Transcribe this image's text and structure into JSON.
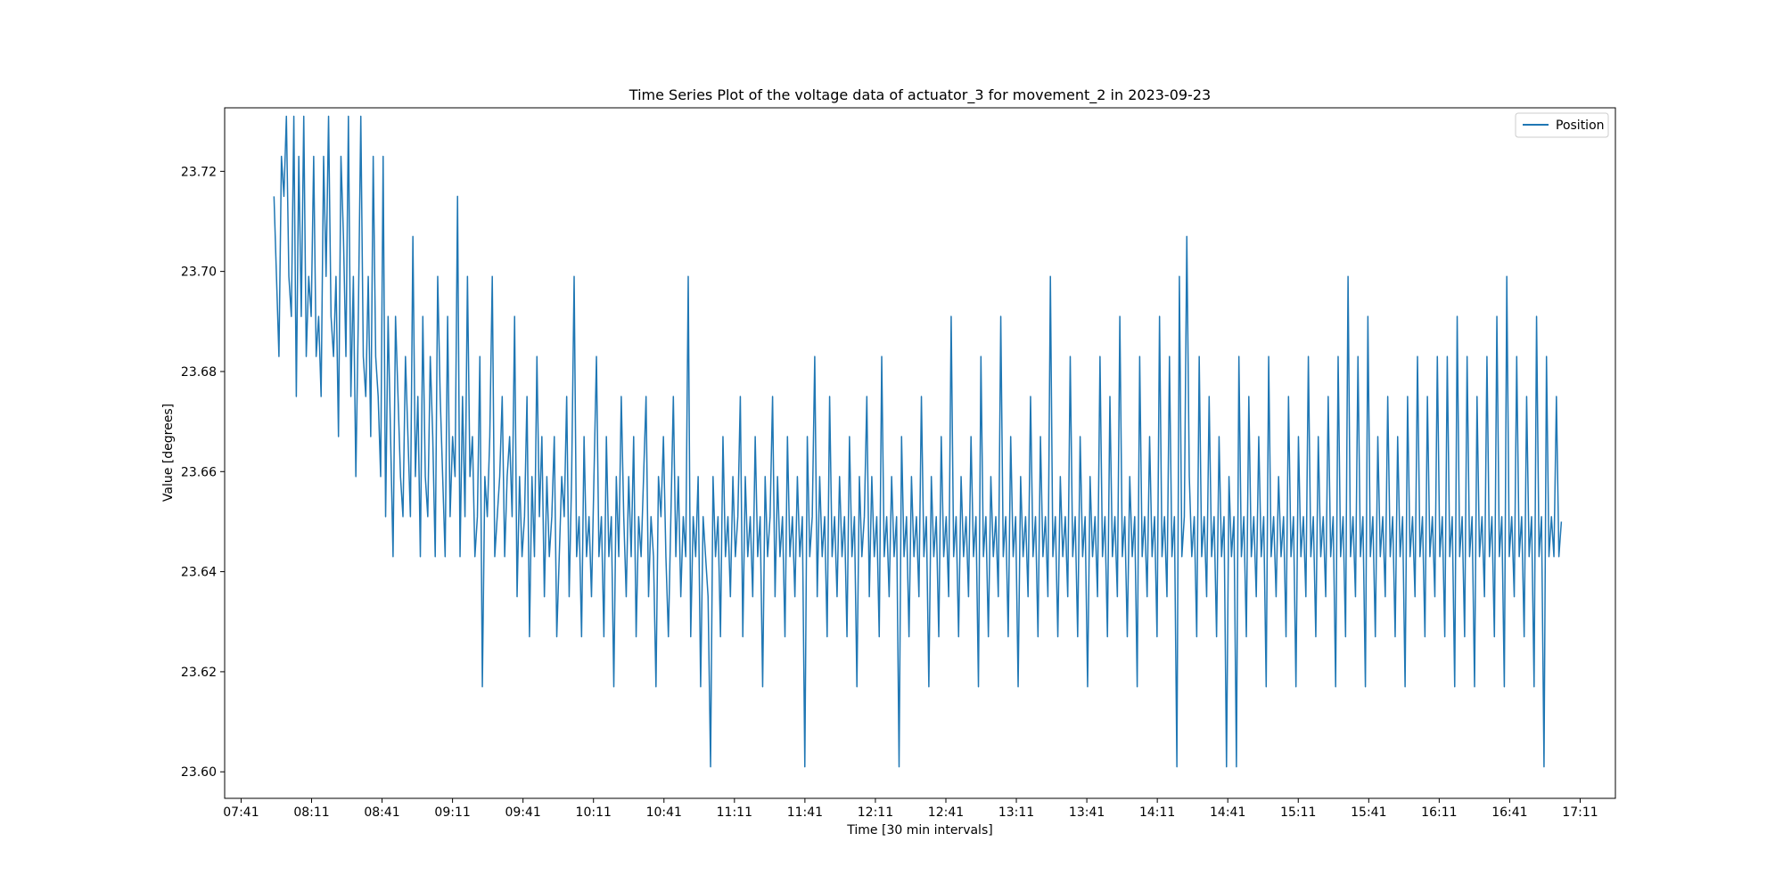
{
  "chart_data": {
    "type": "line",
    "title": "Time Series Plot of the voltage data of actuator_3 for movement_2 in 2023-09-23",
    "xlabel": "Time [30 min intervals]",
    "ylabel": "Value [degrees]",
    "x_ticks": [
      "07:41",
      "08:11",
      "08:41",
      "09:11",
      "09:41",
      "10:11",
      "10:41",
      "11:11",
      "11:41",
      "12:11",
      "12:41",
      "13:11",
      "13:41",
      "14:11",
      "14:41",
      "15:11",
      "15:41",
      "16:11",
      "16:41",
      "17:11"
    ],
    "y_ticks": [
      "23.60",
      "23.62",
      "23.64",
      "23.66",
      "23.68",
      "23.70",
      "23.72"
    ],
    "xlim": [
      "07:34",
      "17:26"
    ],
    "ylim": [
      23.5947,
      23.7327
    ],
    "grid": false,
    "legend_position": "top-right",
    "series": [
      {
        "name": "Position",
        "color": "#1f77b4",
        "x_start": "07:55",
        "x_end": "17:03",
        "note_on_data": "",
        "values": [
          23.715,
          23.699,
          23.683,
          23.723,
          23.715,
          23.731,
          23.699,
          23.691,
          23.731,
          23.675,
          23.723,
          23.691,
          23.731,
          23.683,
          23.699,
          23.691,
          23.723,
          23.683,
          23.691,
          23.675,
          23.723,
          23.699,
          23.731,
          23.691,
          23.683,
          23.699,
          23.667,
          23.723,
          23.707,
          23.683,
          23.731,
          23.675,
          23.699,
          23.659,
          23.691,
          23.731,
          23.683,
          23.675,
          23.699,
          23.667,
          23.723,
          23.683,
          23.675,
          23.659,
          23.723,
          23.651,
          23.691,
          23.667,
          23.643,
          23.691,
          23.675,
          23.659,
          23.651,
          23.683,
          23.667,
          23.651,
          23.707,
          23.659,
          23.675,
          23.643,
          23.691,
          23.659,
          23.651,
          23.683,
          23.667,
          23.643,
          23.699,
          23.675,
          23.659,
          23.643,
          23.691,
          23.651,
          23.667,
          23.659,
          23.715,
          23.643,
          23.675,
          23.651,
          23.699,
          23.659,
          23.667,
          23.643,
          23.651,
          23.683,
          23.617,
          23.659,
          23.651,
          23.667,
          23.699,
          23.643,
          23.651,
          23.659,
          23.675,
          23.643,
          23.659,
          23.667,
          23.651,
          23.691,
          23.635,
          23.659,
          23.643,
          23.651,
          23.675,
          23.627,
          23.659,
          23.643,
          23.683,
          23.651,
          23.667,
          23.635,
          23.659,
          23.643,
          23.651,
          23.667,
          23.627,
          23.643,
          23.659,
          23.651,
          23.675,
          23.635,
          23.659,
          23.699,
          23.643,
          23.651,
          23.627,
          23.667,
          23.643,
          23.651,
          23.635,
          23.659,
          23.683,
          23.643,
          23.651,
          23.627,
          23.667,
          23.643,
          23.651,
          23.617,
          23.659,
          23.643,
          23.675,
          23.651,
          23.635,
          23.659,
          23.643,
          23.667,
          23.627,
          23.651,
          23.643,
          23.659,
          23.675,
          23.635,
          23.651,
          23.643,
          23.617,
          23.659,
          23.651,
          23.667,
          23.643,
          23.627,
          23.651,
          23.675,
          23.643,
          23.659,
          23.635,
          23.651,
          23.643,
          23.699,
          23.627,
          23.651,
          23.643,
          23.659,
          23.617,
          23.651,
          23.643,
          23.635,
          23.601,
          23.659,
          23.643,
          23.651,
          23.627,
          23.667,
          23.643,
          23.651,
          23.635,
          23.659,
          23.643,
          23.651,
          23.675,
          23.627,
          23.659,
          23.643,
          23.651,
          23.635,
          23.667,
          23.643,
          23.651,
          23.617,
          23.659,
          23.643,
          23.651,
          23.675,
          23.635,
          23.659,
          23.643,
          23.651,
          23.627,
          23.667,
          23.643,
          23.651,
          23.635,
          23.659,
          23.643,
          23.651,
          23.601,
          23.667,
          23.643,
          23.651,
          23.683,
          23.635,
          23.659,
          23.643,
          23.651,
          23.627,
          23.675,
          23.643,
          23.651,
          23.635,
          23.659,
          23.643,
          23.651,
          23.627,
          23.667,
          23.643,
          23.651,
          23.617,
          23.659,
          23.643,
          23.651,
          23.675,
          23.635,
          23.659,
          23.643,
          23.651,
          23.627,
          23.683,
          23.643,
          23.651,
          23.635,
          23.659,
          23.643,
          23.651,
          23.601,
          23.667,
          23.643,
          23.651,
          23.627,
          23.659,
          23.643,
          23.651,
          23.635,
          23.675,
          23.643,
          23.651,
          23.617,
          23.659,
          23.643,
          23.651,
          23.627,
          23.667,
          23.643,
          23.651,
          23.635,
          23.691,
          23.643,
          23.651,
          23.627,
          23.659,
          23.643,
          23.651,
          23.635,
          23.667,
          23.643,
          23.651,
          23.617,
          23.683,
          23.643,
          23.651,
          23.627,
          23.659,
          23.643,
          23.651,
          23.635,
          23.691,
          23.643,
          23.651,
          23.627,
          23.667,
          23.643,
          23.651,
          23.617,
          23.659,
          23.643,
          23.651,
          23.635,
          23.675,
          23.643,
          23.651,
          23.627,
          23.667,
          23.643,
          23.651,
          23.635,
          23.699,
          23.643,
          23.651,
          23.627,
          23.659,
          23.643,
          23.651,
          23.635,
          23.683,
          23.643,
          23.651,
          23.627,
          23.667,
          23.643,
          23.651,
          23.617,
          23.659,
          23.643,
          23.651,
          23.635,
          23.683,
          23.643,
          23.651,
          23.627,
          23.675,
          23.643,
          23.651,
          23.635,
          23.691,
          23.643,
          23.651,
          23.627,
          23.659,
          23.643,
          23.651,
          23.617,
          23.683,
          23.643,
          23.651,
          23.635,
          23.667,
          23.643,
          23.651,
          23.627,
          23.691,
          23.643,
          23.651,
          23.635,
          23.683,
          23.643,
          23.651,
          23.601,
          23.699,
          23.643,
          23.651,
          23.707,
          23.659,
          23.643,
          23.651,
          23.627,
          23.683,
          23.643,
          23.651,
          23.635,
          23.675,
          23.643,
          23.651,
          23.627,
          23.667,
          23.643,
          23.651,
          23.601,
          23.659,
          23.643,
          23.651,
          23.601,
          23.683,
          23.643,
          23.651,
          23.627,
          23.675,
          23.643,
          23.651,
          23.635,
          23.667,
          23.643,
          23.651,
          23.617,
          23.683,
          23.643,
          23.651,
          23.635,
          23.659,
          23.643,
          23.651,
          23.627,
          23.675,
          23.643,
          23.651,
          23.617,
          23.667,
          23.643,
          23.651,
          23.635,
          23.683,
          23.643,
          23.651,
          23.627,
          23.667,
          23.643,
          23.651,
          23.635,
          23.675,
          23.643,
          23.651,
          23.617,
          23.683,
          23.643,
          23.651,
          23.627,
          23.699,
          23.643,
          23.651,
          23.635,
          23.683,
          23.643,
          23.651,
          23.617,
          23.691,
          23.643,
          23.651,
          23.627,
          23.667,
          23.643,
          23.651,
          23.635,
          23.675,
          23.643,
          23.651,
          23.627,
          23.667,
          23.643,
          23.651,
          23.617,
          23.675,
          23.643,
          23.651,
          23.635,
          23.683,
          23.643,
          23.651,
          23.627,
          23.675,
          23.643,
          23.651,
          23.635,
          23.683,
          23.643,
          23.651,
          23.627,
          23.683,
          23.643,
          23.651,
          23.617,
          23.691,
          23.643,
          23.651,
          23.627,
          23.683,
          23.643,
          23.651,
          23.617,
          23.675,
          23.643,
          23.651,
          23.635,
          23.683,
          23.643,
          23.651,
          23.627,
          23.691,
          23.643,
          23.651,
          23.617,
          23.699,
          23.643,
          23.651,
          23.635,
          23.683,
          23.643,
          23.651,
          23.627,
          23.675,
          23.643,
          23.651,
          23.617,
          23.691,
          23.643,
          23.651,
          23.601,
          23.683,
          23.643,
          23.651,
          23.643,
          23.675,
          23.643,
          23.65
        ]
      }
    ]
  }
}
